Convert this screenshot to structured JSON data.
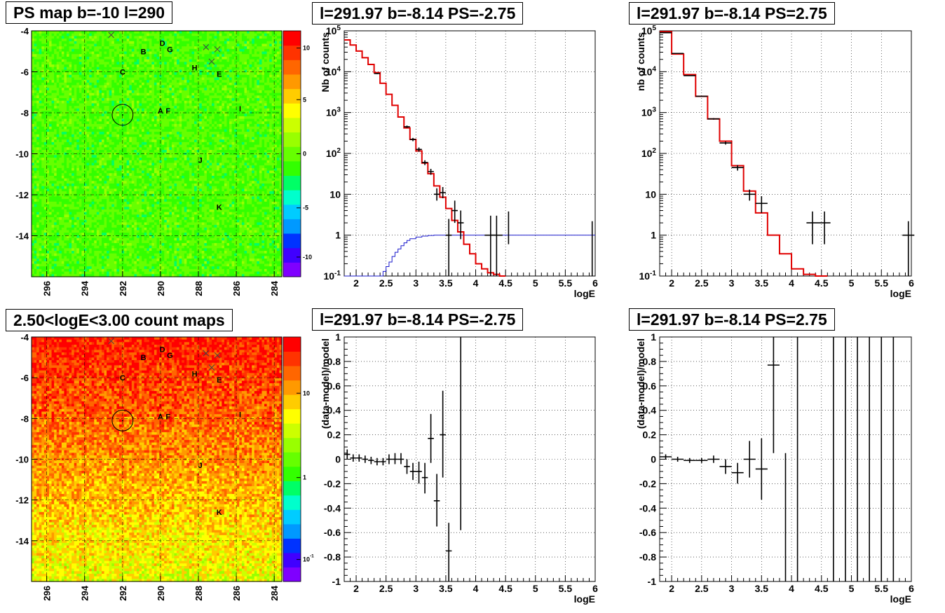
{
  "titles": {
    "p1": "PS map b=-10 l=290",
    "p2": "l=291.97 b=-8.14 PS=-2.75",
    "p3": "l=291.97 b=-8.14 PS=2.75",
    "p4": "2.50<logE<3.00 count maps",
    "p5": "l=291.97 b=-8.14 PS=-2.75",
    "p6": "l=291.97 b=-8.14 PS=2.75"
  },
  "chart_data": [
    {
      "type": "heatmap",
      "title": "PS map b=-10 l=290",
      "x_ticks": [
        "296",
        "294",
        "292",
        "290",
        "288",
        "286",
        "284"
      ],
      "y_ticks": [
        "-4",
        "-6",
        "-8",
        "-10",
        "-12",
        "-14"
      ],
      "xlim": [
        296.8,
        283.6
      ],
      "ylim": [
        -16,
        -4
      ],
      "colorbar_ticks": [
        "10",
        "5",
        "0",
        "-5",
        "-10"
      ],
      "colorbar_colors": [
        "#7f00ff",
        "#4000ff",
        "#0033ff",
        "#0099ff",
        "#00ccff",
        "#00ffcc",
        "#00ff66",
        "#33ff00",
        "#66ff00",
        "#99ff00",
        "#ccff00",
        "#ffff00",
        "#ffcc00",
        "#ff9900",
        "#ff6600",
        "#ff3300",
        "#ff0000"
      ],
      "dominant_color": "#22ee55",
      "labels": [
        {
          "text": "A",
          "l": 290.0,
          "b": -7.9
        },
        {
          "text": "B",
          "l": 290.9,
          "b": -5.0
        },
        {
          "text": "C",
          "l": 292.0,
          "b": -6.0
        },
        {
          "text": "D",
          "l": 289.9,
          "b": -4.6
        },
        {
          "text": "E",
          "l": 286.9,
          "b": -6.1
        },
        {
          "text": "F",
          "l": 289.6,
          "b": -7.9
        },
        {
          "text": "G",
          "l": 289.5,
          "b": -4.9
        },
        {
          "text": "H",
          "l": 288.2,
          "b": -5.8
        },
        {
          "text": "I",
          "l": 285.8,
          "b": -7.8
        },
        {
          "text": "J",
          "l": 287.9,
          "b": -10.3
        },
        {
          "text": "K",
          "l": 286.9,
          "b": -12.6
        }
      ],
      "crosses": [
        {
          "l": 292.6,
          "b": -4.2
        },
        {
          "l": 287.6,
          "b": -4.8
        },
        {
          "l": 287.0,
          "b": -4.9
        },
        {
          "l": 287.3,
          "b": -5.5
        }
      ],
      "circle": {
        "l": 292.0,
        "b": -8.1,
        "r": 0.55
      }
    },
    {
      "type": "line",
      "title": "l=291.97 b=-8.14 PS=-2.75",
      "xlabel": "logE",
      "ylabel": "Nb of counts",
      "xlim": [
        1.8,
        6.0
      ],
      "ylim": [
        0.1,
        100000
      ],
      "log_y": true,
      "x_ticks": [
        "2",
        "2.5",
        "3",
        "3.5",
        "4",
        "4.5",
        "5",
        "5.5",
        "6"
      ],
      "y_ticks": [
        "10^-1",
        "1",
        "10",
        "10^2",
        "10^3",
        "10^4",
        "10^5"
      ],
      "grid": true,
      "model_step": {
        "edges": [
          1.8,
          1.9,
          2.0,
          2.1,
          2.2,
          2.3,
          2.4,
          2.5,
          2.6,
          2.7,
          2.8,
          2.9,
          3.0,
          3.1,
          3.2,
          3.3,
          3.4,
          3.5,
          3.6,
          3.7,
          3.8,
          3.9,
          4.0,
          4.1,
          4.2,
          4.3,
          4.4,
          4.5
        ],
        "values": [
          60000,
          45000,
          32000,
          22000,
          15000,
          9500,
          5200,
          2800,
          1500,
          780,
          420,
          220,
          115,
          58,
          32,
          16,
          8.5,
          4.5,
          2.3,
          1.2,
          0.6,
          0.35,
          0.2,
          0.15,
          0.12,
          0.11,
          0.1
        ]
      },
      "background_step": {
        "edges": [
          1.8,
          2.0,
          2.2,
          2.4,
          2.45,
          2.5,
          2.55,
          2.6,
          2.65,
          2.7,
          2.75,
          2.8,
          2.85,
          2.9,
          3.0,
          3.1,
          3.2,
          3.3,
          3.4,
          6.0
        ],
        "values": [
          0.1,
          0.1,
          0.1,
          0.1,
          0.13,
          0.17,
          0.22,
          0.3,
          0.38,
          0.46,
          0.55,
          0.65,
          0.74,
          0.82,
          0.9,
          0.95,
          0.98,
          1.0,
          1.0
        ]
      },
      "points": [
        {
          "x": 2.35,
          "y": 9000,
          "dx": 0.05,
          "lo": 8700,
          "hi": 9300
        },
        {
          "x": 2.85,
          "y": 450,
          "dx": 0.05,
          "lo": 420,
          "hi": 480
        },
        {
          "x": 2.95,
          "y": 220,
          "dx": 0.05,
          "lo": 200,
          "hi": 240
        },
        {
          "x": 3.05,
          "y": 125,
          "dx": 0.05,
          "lo": 110,
          "hi": 140
        },
        {
          "x": 3.15,
          "y": 60,
          "dx": 0.05,
          "lo": 52,
          "hi": 68
        },
        {
          "x": 3.25,
          "y": 36,
          "dx": 0.05,
          "lo": 30,
          "hi": 42
        },
        {
          "x": 3.35,
          "y": 10,
          "dx": 0.05,
          "lo": 7,
          "hi": 14
        },
        {
          "x": 3.45,
          "y": 11,
          "dx": 0.05,
          "lo": 8,
          "hi": 15
        },
        {
          "x": 3.65,
          "y": 4,
          "dx": 0.05,
          "lo": 2,
          "hi": 7
        },
        {
          "x": 3.75,
          "y": 2,
          "dx": 0.05,
          "lo": 0.8,
          "hi": 4
        },
        {
          "x": 3.55,
          "y": 1,
          "dx": 0.05,
          "lo": 0.1,
          "hi": 2.5
        },
        {
          "x": 4.25,
          "y": 1,
          "dx": 0.1,
          "lo": 0.1,
          "hi": 3
        },
        {
          "x": 4.35,
          "y": 1,
          "dx": 0.1,
          "lo": 0.1,
          "hi": 3
        },
        {
          "x": 4.55,
          "y": 2,
          "dx": 0.0,
          "lo": 0.6,
          "hi": 3.8
        },
        {
          "x": 5.95,
          "y": 1,
          "dx": 0.0,
          "lo": 0.1,
          "hi": 2.2
        }
      ]
    },
    {
      "type": "line",
      "title": "l=291.97 b=-8.14 PS=2.75",
      "xlabel": "logE",
      "ylabel": "nb of counts",
      "xlim": [
        1.8,
        6.0
      ],
      "ylim": [
        0.1,
        100000
      ],
      "log_y": true,
      "x_ticks": [
        "2",
        "2.5",
        "3",
        "3.5",
        "4",
        "4.5",
        "5",
        "5.5",
        "6"
      ],
      "y_ticks": [
        "10^-1",
        "1",
        "10",
        "10^2",
        "10^3",
        "10^4",
        "10^5"
      ],
      "grid": true,
      "model_step": {
        "edges": [
          1.8,
          2.0,
          2.2,
          2.4,
          2.6,
          2.8,
          3.0,
          3.2,
          3.4,
          3.6,
          3.8,
          4.0,
          4.2,
          4.4,
          4.6
        ],
        "values": [
          95000,
          27000,
          8500,
          2500,
          700,
          200,
          50,
          12,
          3.5,
          1.0,
          0.35,
          0.15,
          0.11,
          0.1
        ]
      },
      "points": [
        {
          "x": 1.9,
          "y": 90000,
          "dx": 0.1,
          "lo": 89500,
          "hi": 90500
        },
        {
          "x": 2.1,
          "y": 28000,
          "dx": 0.1,
          "lo": 27800,
          "hi": 28200
        },
        {
          "x": 2.3,
          "y": 8000,
          "dx": 0.1,
          "lo": 7900,
          "hi": 8100
        },
        {
          "x": 2.5,
          "y": 2500,
          "dx": 0.1,
          "lo": 2450,
          "hi": 2550
        },
        {
          "x": 2.7,
          "y": 700,
          "dx": 0.1,
          "lo": 670,
          "hi": 730
        },
        {
          "x": 2.9,
          "y": 180,
          "dx": 0.1,
          "lo": 165,
          "hi": 195
        },
        {
          "x": 3.1,
          "y": 45,
          "dx": 0.1,
          "lo": 38,
          "hi": 52
        },
        {
          "x": 3.3,
          "y": 10,
          "dx": 0.1,
          "lo": 7,
          "hi": 13
        },
        {
          "x": 3.5,
          "y": 6,
          "dx": 0.1,
          "lo": 3.5,
          "hi": 9
        },
        {
          "x": 4.35,
          "y": 2,
          "dx": 0.1,
          "lo": 0.6,
          "hi": 3.8
        },
        {
          "x": 4.55,
          "y": 2,
          "dx": 0.1,
          "lo": 0.6,
          "hi": 3.8
        },
        {
          "x": 5.95,
          "y": 1,
          "dx": 0.1,
          "lo": 0.1,
          "hi": 2.2
        }
      ]
    },
    {
      "type": "heatmap",
      "title": "2.50<logE<3.00 count maps",
      "x_ticks": [
        "296",
        "294",
        "292",
        "290",
        "288",
        "286",
        "284"
      ],
      "y_ticks": [
        "-4",
        "-6",
        "-8",
        "-10",
        "-12",
        "-14"
      ],
      "xlim": [
        296.8,
        283.6
      ],
      "ylim": [
        -16,
        -4
      ],
      "log_color": true,
      "colorbar_ticks": [
        "10",
        "1",
        "10^-1"
      ],
      "colorbar_colors": [
        "#7f00ff",
        "#4000ff",
        "#0033ff",
        "#0099ff",
        "#00ccff",
        "#00ffcc",
        "#00ff66",
        "#33ff00",
        "#66ff00",
        "#99ff00",
        "#ccff00",
        "#ffff00",
        "#ffcc00",
        "#ff9900",
        "#ff6600",
        "#ff3300",
        "#ff0000"
      ],
      "gradient_top": "#ff3300",
      "gradient_bottom": "#ddee22",
      "labels": [
        {
          "text": "A",
          "l": 290.0,
          "b": -7.9
        },
        {
          "text": "B",
          "l": 290.9,
          "b": -5.0
        },
        {
          "text": "C",
          "l": 292.0,
          "b": -6.0
        },
        {
          "text": "D",
          "l": 289.9,
          "b": -4.6
        },
        {
          "text": "E",
          "l": 286.9,
          "b": -6.1
        },
        {
          "text": "F",
          "l": 289.6,
          "b": -7.9
        },
        {
          "text": "G",
          "l": 289.5,
          "b": -4.9
        },
        {
          "text": "H",
          "l": 288.2,
          "b": -5.8
        },
        {
          "text": "I",
          "l": 285.8,
          "b": -7.8
        },
        {
          "text": "J",
          "l": 287.9,
          "b": -10.3
        },
        {
          "text": "K",
          "l": 286.9,
          "b": -12.6
        }
      ],
      "crosses": [
        {
          "l": 292.6,
          "b": -4.2
        },
        {
          "l": 287.6,
          "b": -4.8
        },
        {
          "l": 287.0,
          "b": -4.9
        },
        {
          "l": 287.3,
          "b": -5.5
        }
      ],
      "circle": {
        "l": 292.0,
        "b": -8.1,
        "r": 0.55
      }
    },
    {
      "type": "scatter",
      "title": "l=291.97 b=-8.14 PS=-2.75",
      "xlabel": "logE",
      "ylabel": "(data-model)/model",
      "xlim": [
        1.8,
        6.0
      ],
      "ylim": [
        -1,
        1
      ],
      "x_ticks": [
        "2",
        "2.5",
        "3",
        "3.5",
        "4",
        "4.5",
        "5",
        "5.5",
        "6"
      ],
      "y_ticks": [
        "-1",
        "-0.8",
        "-0.6",
        "-0.4",
        "-0.2",
        "0",
        "0.2",
        "0.4",
        "0.6",
        "0.8",
        "1"
      ],
      "grid": true,
      "points": [
        {
          "x": 1.85,
          "y": 0.04,
          "dx": 0.05,
          "lo": 0.0,
          "hi": 0.08
        },
        {
          "x": 1.95,
          "y": 0.01,
          "dx": 0.05,
          "lo": -0.02,
          "hi": 0.04
        },
        {
          "x": 2.05,
          "y": 0.01,
          "dx": 0.05,
          "lo": -0.02,
          "hi": 0.04
        },
        {
          "x": 2.15,
          "y": 0.0,
          "dx": 0.05,
          "lo": -0.03,
          "hi": 0.03
        },
        {
          "x": 2.25,
          "y": -0.01,
          "dx": 0.05,
          "lo": -0.04,
          "hi": 0.02
        },
        {
          "x": 2.35,
          "y": -0.02,
          "dx": 0.05,
          "lo": -0.05,
          "hi": 0.01
        },
        {
          "x": 2.45,
          "y": -0.02,
          "dx": 0.05,
          "lo": -0.05,
          "hi": 0.01
        },
        {
          "x": 2.55,
          "y": 0.0,
          "dx": 0.05,
          "lo": -0.04,
          "hi": 0.04
        },
        {
          "x": 2.65,
          "y": 0.0,
          "dx": 0.05,
          "lo": -0.04,
          "hi": 0.05
        },
        {
          "x": 2.75,
          "y": 0.0,
          "dx": 0.05,
          "lo": -0.04,
          "hi": 0.05
        },
        {
          "x": 2.85,
          "y": -0.06,
          "dx": 0.05,
          "lo": -0.12,
          "hi": 0.0
        },
        {
          "x": 2.95,
          "y": -0.1,
          "dx": 0.05,
          "lo": -0.17,
          "hi": -0.03
        },
        {
          "x": 3.05,
          "y": -0.1,
          "dx": 0.05,
          "lo": -0.2,
          "hi": -0.02
        },
        {
          "x": 3.15,
          "y": -0.15,
          "dx": 0.05,
          "lo": -0.28,
          "hi": -0.03
        },
        {
          "x": 3.25,
          "y": 0.17,
          "dx": 0.05,
          "lo": -0.03,
          "hi": 0.37
        },
        {
          "x": 3.35,
          "y": -0.34,
          "dx": 0.05,
          "lo": -0.55,
          "hi": -0.12
        },
        {
          "x": 3.45,
          "y": 0.2,
          "dx": 0.05,
          "lo": -0.15,
          "hi": 0.56
        },
        {
          "x": 3.55,
          "y": -0.75,
          "dx": 0.05,
          "lo": -1.0,
          "hi": -0.52
        },
        {
          "x": 3.75,
          "y": 0.42,
          "dx": 0.0,
          "lo": -0.58,
          "hi": 1.0
        }
      ]
    },
    {
      "type": "scatter",
      "title": "l=291.97 b=-8.14 PS=2.75",
      "xlabel": "logE",
      "ylabel": "(data-model)/model",
      "xlim": [
        1.8,
        6.0
      ],
      "ylim": [
        -1,
        1
      ],
      "x_ticks": [
        "2",
        "2.5",
        "3",
        "3.5",
        "4",
        "4.5",
        "5",
        "5.5",
        "6"
      ],
      "y_ticks": [
        "-1",
        "-0.8",
        "-0.6",
        "-0.4",
        "-0.2",
        "0",
        "0.2",
        "0.4",
        "0.6",
        "0.8",
        "1"
      ],
      "grid": true,
      "points": [
        {
          "x": 1.9,
          "y": 0.02,
          "dx": 0.1,
          "lo": 0.0,
          "hi": 0.04
        },
        {
          "x": 2.1,
          "y": 0.0,
          "dx": 0.1,
          "lo": -0.02,
          "hi": 0.02
        },
        {
          "x": 2.3,
          "y": -0.01,
          "dx": 0.1,
          "lo": -0.03,
          "hi": 0.01
        },
        {
          "x": 2.5,
          "y": -0.01,
          "dx": 0.1,
          "lo": -0.03,
          "hi": 0.01
        },
        {
          "x": 2.7,
          "y": 0.0,
          "dx": 0.1,
          "lo": -0.03,
          "hi": 0.03
        },
        {
          "x": 2.9,
          "y": -0.06,
          "dx": 0.1,
          "lo": -0.12,
          "hi": 0.0
        },
        {
          "x": 3.1,
          "y": -0.11,
          "dx": 0.1,
          "lo": -0.2,
          "hi": -0.03
        },
        {
          "x": 3.3,
          "y": 0.0,
          "dx": 0.1,
          "lo": -0.15,
          "hi": 0.15
        },
        {
          "x": 3.5,
          "y": -0.08,
          "dx": 0.1,
          "lo": -0.33,
          "hi": 0.17
        },
        {
          "x": 3.7,
          "y": 0.77,
          "dx": 0.1,
          "lo": 0.05,
          "hi": 1.0
        },
        {
          "x": 3.9,
          "y": 0.05,
          "dx": 0.0,
          "lo": -1.0,
          "hi": 0.05
        },
        {
          "x": 4.1,
          "y": 0.0,
          "dx": 0.0,
          "lo": -1.0,
          "hi": 1.0
        },
        {
          "x": 4.7,
          "y": 0.0,
          "dx": 0.0,
          "lo": -1.0,
          "hi": 1.0
        },
        {
          "x": 4.9,
          "y": 0.0,
          "dx": 0.0,
          "lo": -1.0,
          "hi": 1.0
        },
        {
          "x": 5.1,
          "y": 0.0,
          "dx": 0.0,
          "lo": -1.0,
          "hi": 1.0
        },
        {
          "x": 5.3,
          "y": 0.0,
          "dx": 0.0,
          "lo": -1.0,
          "hi": 1.0
        },
        {
          "x": 5.5,
          "y": 0.0,
          "dx": 0.0,
          "lo": -1.0,
          "hi": 1.0
        },
        {
          "x": 5.7,
          "y": 0.0,
          "dx": 0.0,
          "lo": -1.0,
          "hi": 1.0
        }
      ]
    }
  ]
}
